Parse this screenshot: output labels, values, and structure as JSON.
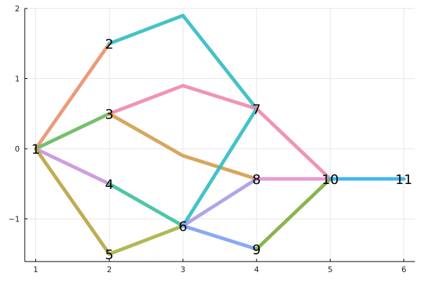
{
  "chart_data": {
    "type": "line",
    "xlim": [
      1,
      6
    ],
    "ylim": [
      -1.6,
      2
    ],
    "x_ticks": [
      1,
      2,
      3,
      4,
      5,
      6
    ],
    "y_ticks": [
      2,
      1,
      0,
      -1
    ],
    "y_tick_labels": [
      "2",
      "1",
      "0",
      "−1"
    ],
    "grid": true,
    "nodes": [
      {
        "label": "1",
        "x": 1,
        "y": 0
      },
      {
        "label": "2",
        "x": 2,
        "y": 1.5
      },
      {
        "label": "3",
        "x": 2,
        "y": 0.5
      },
      {
        "label": "4",
        "x": 2,
        "y": -0.5
      },
      {
        "label": "5",
        "x": 2,
        "y": -1.5
      },
      {
        "label": "6",
        "x": 3,
        "y": -1.1
      },
      {
        "label": "7",
        "x": 4,
        "y": 0.57
      },
      {
        "label": "8",
        "x": 4,
        "y": -0.43
      },
      {
        "label": "9",
        "x": 4,
        "y": -1.43
      },
      {
        "label": "10",
        "x": 5,
        "y": -0.43
      },
      {
        "label": "11",
        "x": 6,
        "y": -0.43
      }
    ],
    "edges": [
      {
        "color": "#e8916d",
        "points": [
          [
            1,
            0
          ],
          [
            2,
            1.5
          ]
        ]
      },
      {
        "color": "#68b85c",
        "points": [
          [
            1,
            0
          ],
          [
            2,
            0.5
          ]
        ]
      },
      {
        "color": "#c994dd",
        "points": [
          [
            1,
            0
          ],
          [
            2,
            -0.5
          ]
        ]
      },
      {
        "color": "#b8a442",
        "points": [
          [
            1,
            0
          ],
          [
            2,
            -1.5
          ]
        ]
      },
      {
        "color": "#2fbcc2",
        "points": [
          [
            2,
            1.5
          ],
          [
            3,
            1.9
          ],
          [
            4,
            0.57
          ]
        ]
      },
      {
        "color": "#ee88aa",
        "points": [
          [
            2,
            0.5
          ],
          [
            3,
            0.9
          ],
          [
            4,
            0.57
          ]
        ]
      },
      {
        "color": "#d29d4b",
        "points": [
          [
            2,
            0.5
          ],
          [
            3,
            -0.1
          ],
          [
            4,
            -0.43
          ]
        ]
      },
      {
        "color": "#3cbf9c",
        "points": [
          [
            2,
            -0.5
          ],
          [
            3,
            -1.1
          ]
        ]
      },
      {
        "color": "#a7b243",
        "points": [
          [
            2,
            -1.5
          ],
          [
            3,
            -1.1
          ]
        ]
      },
      {
        "color": "#2fbcc2",
        "points": [
          [
            3,
            -1.1
          ],
          [
            4,
            0.57
          ]
        ]
      },
      {
        "color": "#a79be6",
        "points": [
          [
            3,
            -1.1
          ],
          [
            4,
            -0.43
          ]
        ]
      },
      {
        "color": "#7d9ef5",
        "points": [
          [
            3,
            -1.1
          ],
          [
            4,
            -1.43
          ]
        ]
      },
      {
        "color": "#ee88aa",
        "points": [
          [
            4,
            0.57
          ],
          [
            5,
            -0.43
          ]
        ]
      },
      {
        "color": "#e58fd0",
        "points": [
          [
            4,
            -0.43
          ],
          [
            5,
            -0.43
          ]
        ]
      },
      {
        "color": "#7cad3c",
        "points": [
          [
            4,
            -1.43
          ],
          [
            5,
            -0.43
          ]
        ]
      },
      {
        "color": "#2fb0ea",
        "points": [
          [
            5,
            -0.43
          ],
          [
            6,
            -0.43
          ]
        ]
      }
    ]
  }
}
